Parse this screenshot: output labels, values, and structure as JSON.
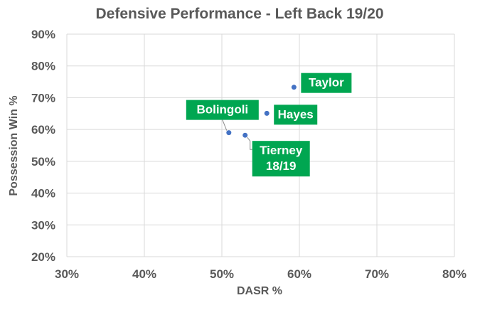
{
  "chart_data": {
    "type": "scatter",
    "title": "Defensive Performance - Left Back 19/20",
    "xlabel": "DASR %",
    "ylabel": "Possession Win %",
    "xlim": [
      30,
      80
    ],
    "ylim": [
      20,
      90
    ],
    "x_ticks": [
      "30%",
      "40%",
      "50%",
      "60%",
      "70%",
      "80%"
    ],
    "y_ticks": [
      "20%",
      "30%",
      "40%",
      "50%",
      "60%",
      "70%",
      "80%",
      "90%"
    ],
    "grid": true,
    "point_color": "#4472c4",
    "label_color": "#00a651",
    "points": [
      {
        "label": [
          "Taylor"
        ],
        "x": 59.3,
        "y": 73.3
      },
      {
        "label": [
          "Hayes"
        ],
        "x": 55.8,
        "y": 65.1
      },
      {
        "label": [
          "Bolingoli"
        ],
        "x": 50.9,
        "y": 59.0
      },
      {
        "label": [
          "Tierney",
          "18/19"
        ],
        "x": 53.0,
        "y": 58.2
      }
    ]
  }
}
